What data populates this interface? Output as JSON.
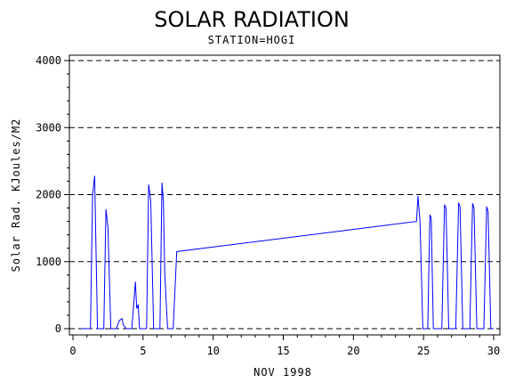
{
  "chart_data": {
    "type": "line",
    "title": "SOLAR RADIATION",
    "subtitle": "STATION=HOGI",
    "xlabel": "NOV 1998",
    "ylabel": "Solar Rad. KJoules/M2",
    "xlim": [
      0,
      30
    ],
    "ylim": [
      0,
      4000
    ],
    "x_ticks": [
      0,
      5,
      10,
      15,
      20,
      25,
      30
    ],
    "y_ticks": [
      0,
      1000,
      2000,
      3000,
      4000
    ],
    "y_tick_labels": [
      "0",
      "1000",
      "2000",
      "3000",
      "4000"
    ],
    "grid": "horizontal dashed at major y ticks",
    "series": [
      {
        "color": "#0000ff",
        "x": [
          0.6,
          1.25,
          1.4,
          1.55,
          1.75,
          2.2,
          2.35,
          2.5,
          2.7,
          3.1,
          3.3,
          3.5,
          3.6,
          3.8,
          4.2,
          4.45,
          4.55,
          4.65,
          4.75,
          4.9,
          5.25,
          5.4,
          5.55,
          5.75,
          6.2,
          6.35,
          6.45,
          6.55,
          6.75,
          7.15,
          7.4,
          24.5,
          24.6,
          24.75,
          24.95,
          25.3,
          25.45,
          25.55,
          25.7,
          26.3,
          26.5,
          26.6,
          26.8,
          27.3,
          27.5,
          27.6,
          27.8,
          28.3,
          28.5,
          28.6,
          28.8,
          29.3,
          29.5,
          29.6,
          29.8,
          30.0
        ],
        "y": [
          0,
          0,
          2000,
          2280,
          0,
          0,
          1780,
          1500,
          0,
          0,
          120,
          150,
          50,
          0,
          0,
          700,
          300,
          360,
          0,
          0,
          0,
          2150,
          1900,
          0,
          0,
          2180,
          1900,
          800,
          0,
          0,
          1150,
          1600,
          1980,
          1600,
          0,
          0,
          1700,
          1650,
          0,
          0,
          1850,
          1800,
          0,
          0,
          1880,
          1820,
          0,
          0,
          1870,
          1800,
          0,
          0,
          1820,
          1750,
          0,
          0
        ]
      }
    ]
  }
}
